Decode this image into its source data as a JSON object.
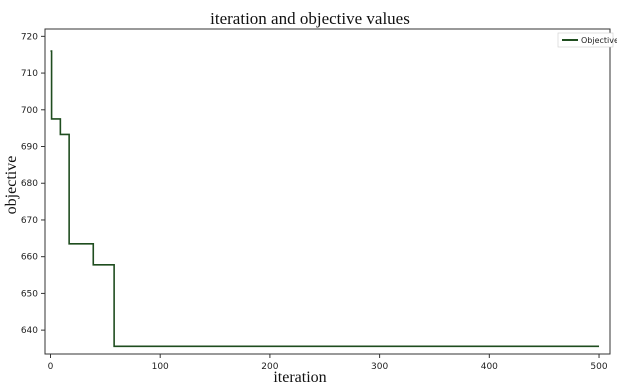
{
  "chart_data": {
    "type": "line",
    "title": "iteration and objective values",
    "xlabel": "iteration",
    "ylabel": "objective",
    "xlim": [
      -5,
      510
    ],
    "ylim": [
      633.5,
      722
    ],
    "xticks": [
      0,
      100,
      200,
      300,
      400,
      500
    ],
    "yticks": [
      640,
      650,
      660,
      670,
      680,
      690,
      700,
      710,
      720
    ],
    "grid": false,
    "legend": "top-right",
    "series": [
      {
        "name": "Objective",
        "color": "#1f4d1f",
        "step": "post",
        "x": [
          0,
          1,
          9,
          13,
          17,
          39,
          58,
          500
        ],
        "y": [
          716,
          697.5,
          693.3,
          693.3,
          663.5,
          657.8,
          635.6,
          635.6
        ]
      }
    ]
  }
}
